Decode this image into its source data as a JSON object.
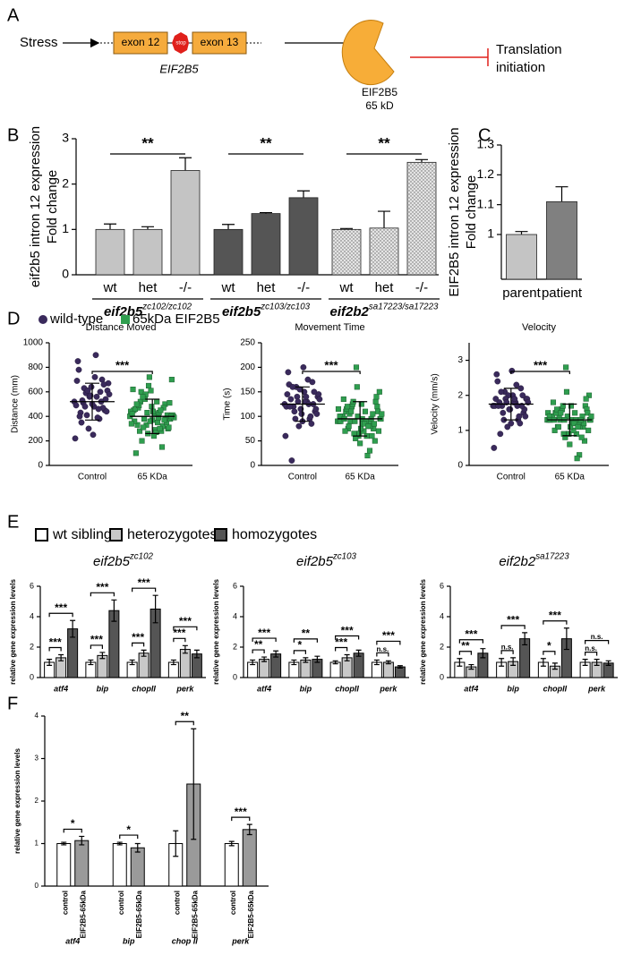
{
  "panel_labels": [
    "A",
    "B",
    "C",
    "D",
    "E",
    "F"
  ],
  "diagram": {
    "stress": "Stress",
    "exon12": "exon 12",
    "stop": "stop",
    "exon13": "exon 13",
    "gene": "EIF2B5",
    "protein": "EIF2B5",
    "protein_size": "65 kD",
    "outcome_lines": [
      "Translation",
      "initiation"
    ]
  },
  "chart_data": [
    {
      "type": "bar_groups",
      "ylabel": [
        "eif2b5 intron 12 expression",
        "Fold change"
      ],
      "ylim": [
        0,
        3
      ],
      "yticks": [
        0,
        1,
        2,
        3
      ],
      "groups": [
        {
          "name": "eif2b5",
          "sup": "zc102/zc102",
          "color": "#c4c4c4",
          "categories": [
            "wt",
            "het",
            "-/-"
          ],
          "values": [
            1.0,
            1.0,
            2.3
          ],
          "errors": [
            0.12,
            0.06,
            0.28
          ],
          "annotation": "**"
        },
        {
          "name": "eif2b5",
          "sup": "zc103/zc103",
          "color": "#555555",
          "categories": [
            "wt",
            "het",
            "-/-"
          ],
          "values": [
            1.0,
            1.35,
            1.7
          ],
          "errors": [
            0.11,
            0.02,
            0.15
          ],
          "annotation": "**"
        },
        {
          "name": "eif2b2",
          "sup": "sa17223/sa17223",
          "color": "#e4e4e4",
          "pattern": "dots",
          "categories": [
            "wt",
            "het",
            "-/-"
          ],
          "values": [
            1.0,
            1.03,
            2.48
          ],
          "errors": [
            0.02,
            0.37,
            0.06
          ],
          "annotation": "**"
        }
      ]
    },
    {
      "type": "bar",
      "ylabel": [
        "EIF2B5 intron 12 expression",
        "Fold change"
      ],
      "categories": [
        "parent",
        "patient"
      ],
      "values": [
        1.0,
        1.11
      ],
      "errors": [
        0.01,
        0.05
      ],
      "colors": [
        "#c4c4c4",
        "#808080"
      ],
      "ylim": [
        0.85,
        1.3
      ],
      "yticks": [
        1,
        1.1,
        1.2,
        1.3
      ]
    },
    {
      "type": "strip",
      "title": "Distance Moved",
      "ylabel": "Distance (mm)",
      "categories": [
        "Control",
        "65 KDa"
      ],
      "legend": "top-left",
      "series": [
        {
          "name": "wild-type",
          "color": "#3a2a5c",
          "values": [
            520,
            610,
            450,
            700,
            380,
            560,
            480,
            640,
            300,
            590,
            510,
            430,
            850,
            220,
            670,
            540,
            470,
            600,
            390,
            720,
            500,
            560,
            410,
            630,
            350,
            780,
            490,
            580,
            440,
            660,
            520,
            460,
            900,
            250,
            570,
            610,
            480,
            530,
            400,
            690
          ]
        },
        {
          "name": "65kDa EIF2B5",
          "color": "#2f9e4f",
          "values": [
            400,
            350,
            520,
            300,
            610,
            450,
            280,
            380,
            700,
            420,
            330,
            500,
            260,
            440,
            390,
            600,
            310,
            480,
            360,
            150,
            540,
            410,
            290,
            470,
            380,
            650,
            340,
            430,
            200,
            510,
            370,
            460,
            320,
            580,
            400,
            270,
            490,
            350,
            720,
            420,
            300,
            560,
            380,
            440,
            100,
            470,
            330,
            390,
            520,
            280,
            410,
            360,
            620,
            450,
            310,
            400,
            240,
            500,
            370,
            430
          ]
        }
      ],
      "means": [
        520,
        400
      ],
      "sds": [
        150,
        140
      ],
      "ylim": [
        0,
        1000
      ],
      "yticks": [
        0,
        200,
        400,
        600,
        800,
        1000
      ],
      "annotation": "***"
    },
    {
      "type": "strip",
      "title": "Movement Time",
      "ylabel": "Time (s)",
      "categories": [
        "Control",
        "65 KDa"
      ],
      "series": [
        {
          "name": "wild-type",
          "color": "#3a2a5c",
          "values": [
            125,
            140,
            110,
            170,
            95,
            130,
            150,
            105,
            80,
            160,
            120,
            135,
            190,
            60,
            145,
            115,
            125,
            100,
            175,
            130,
            90,
            155,
            140,
            110,
            10,
            165,
            120,
            135,
            105,
            150,
            85,
            125,
            140,
            200,
            115,
            130,
            95,
            160,
            120,
            145
          ]
        },
        {
          "name": "65kDa EIF2B5",
          "color": "#2f9e4f",
          "values": [
            90,
            110,
            75,
            130,
            60,
            100,
            85,
            120,
            150,
            95,
            70,
            105,
            55,
            115,
            90,
            80,
            140,
            65,
            100,
            30,
            125,
            95,
            85,
            110,
            75,
            200,
            90,
            60,
            105,
            120,
            45,
            100,
            80,
            130,
            95,
            70,
            115,
            85,
            160,
            100,
            20,
            90,
            110,
            75,
            135,
            95,
            65,
            105,
            85,
            120,
            50,
            100,
            90,
            80,
            110,
            70,
            125,
            95,
            60,
            90
          ]
        }
      ],
      "means": [
        125,
        95
      ],
      "sds": [
        35,
        35
      ],
      "ylim": [
        0,
        250
      ],
      "yticks": [
        0,
        50,
        100,
        150,
        200,
        250
      ],
      "annotation": "***"
    },
    {
      "type": "strip",
      "title": "Velocity",
      "ylabel": "Velocity (mm/s)",
      "categories": [
        "Control",
        "65 KDa"
      ],
      "series": [
        {
          "name": "wild-type",
          "color": "#3a2a5c",
          "values": [
            1.7,
            1.9,
            1.5,
            2.2,
            1.3,
            1.8,
            2.0,
            1.6,
            1.1,
            2.1,
            1.7,
            1.8,
            2.6,
            0.5,
            1.9,
            1.6,
            1.7,
            1.4,
            2.3,
            1.8,
            1.2,
            2.0,
            1.9,
            1.5,
            0.9,
            2.4,
            1.7,
            1.8,
            1.4,
            2.0,
            1.2,
            1.7,
            1.9,
            2.7,
            1.6,
            1.8,
            1.3,
            2.1,
            1.7,
            1.9
          ]
        },
        {
          "name": "65kDa EIF2B5",
          "color": "#2f9e4f",
          "values": [
            1.3,
            1.5,
            1.1,
            1.7,
            0.9,
            1.4,
            1.2,
            1.6,
            2.0,
            1.3,
            1.0,
            1.4,
            0.8,
            1.5,
            1.3,
            1.1,
            1.9,
            0.9,
            1.4,
            0.3,
            1.6,
            1.3,
            1.2,
            1.5,
            1.1,
            2.8,
            1.3,
            0.9,
            1.4,
            1.6,
            0.6,
            1.4,
            1.1,
            1.7,
            1.3,
            1.0,
            1.5,
            1.2,
            2.1,
            1.4,
            0.2,
            1.3,
            1.5,
            1.1,
            1.8,
            1.3,
            0.9,
            1.4,
            1.2,
            1.6,
            0.7,
            1.4,
            1.3,
            1.1,
            1.5,
            1.0,
            1.7,
            1.3,
            0.8,
            1.3
          ]
        }
      ],
      "means": [
        1.75,
        1.3
      ],
      "sds": [
        0.45,
        0.45
      ],
      "ylim": [
        0,
        3.5
      ],
      "yticks": [
        0,
        1,
        2,
        3
      ],
      "annotation": "***"
    },
    {
      "type": "grouped_bar",
      "title": "eif2b5",
      "title_sup": "zc102",
      "ylabel": "relative gene expression levels",
      "categories": [
        "atf4",
        "bip",
        "chopII",
        "perk"
      ],
      "legend": "top-left",
      "series": [
        {
          "name": "wt sibling",
          "color": "#ffffff",
          "values": [
            1,
            1,
            1,
            1
          ],
          "errors": [
            0.2,
            0.15,
            0.15,
            0.15
          ]
        },
        {
          "name": "heterozygotes",
          "color": "#c8c8c8",
          "values": [
            1.3,
            1.45,
            1.6,
            1.85
          ],
          "errors": [
            0.2,
            0.2,
            0.2,
            0.25
          ]
        },
        {
          "name": "homozygotes",
          "color": "#555555",
          "values": [
            3.2,
            4.4,
            4.5,
            1.55
          ],
          "errors": [
            0.55,
            0.7,
            0.9,
            0.25
          ]
        }
      ],
      "significance": [
        [
          "***",
          "***"
        ],
        [
          "***",
          "***"
        ],
        [
          "***",
          "***"
        ],
        [
          "***",
          "***"
        ]
      ],
      "ylim": [
        0,
        6
      ],
      "yticks": [
        0,
        2,
        4,
        6
      ]
    },
    {
      "type": "grouped_bar",
      "title": "eif2b5",
      "title_sup": "zc103",
      "ylabel": "relative gene expression levels",
      "categories": [
        "atf4",
        "bip",
        "chopII",
        "perk"
      ],
      "series": [
        {
          "name": "wt sibling",
          "color": "#ffffff",
          "values": [
            1,
            1,
            1,
            1
          ],
          "errors": [
            0.15,
            0.15,
            0.1,
            0.15
          ]
        },
        {
          "name": "heterozygotes",
          "color": "#c8c8c8",
          "values": [
            1.2,
            1.15,
            1.3,
            1.0
          ],
          "errors": [
            0.15,
            0.15,
            0.2,
            0.1
          ]
        },
        {
          "name": "homozygotes",
          "color": "#555555",
          "values": [
            1.55,
            1.2,
            1.6,
            0.7
          ],
          "errors": [
            0.2,
            0.2,
            0.2,
            0.08
          ]
        }
      ],
      "significance": [
        [
          "**",
          "***"
        ],
        [
          "*",
          "**"
        ],
        [
          "***",
          "***"
        ],
        [
          "n.s.",
          "***"
        ]
      ],
      "ylim": [
        0,
        6
      ],
      "yticks": [
        0,
        2,
        4,
        6
      ]
    },
    {
      "type": "grouped_bar",
      "title": "eif2b2",
      "title_sup": "sa17223",
      "ylabel": "relative gene expression levels",
      "categories": [
        "atf4",
        "bip",
        "chopII",
        "perk"
      ],
      "series": [
        {
          "name": "wt sibling",
          "color": "#ffffff",
          "values": [
            1,
            1,
            1,
            1
          ],
          "errors": [
            0.25,
            0.25,
            0.25,
            0.2
          ]
        },
        {
          "name": "heterozygotes",
          "color": "#c8c8c8",
          "values": [
            0.7,
            1.05,
            0.75,
            1.0
          ],
          "errors": [
            0.15,
            0.25,
            0.2,
            0.2
          ]
        },
        {
          "name": "homozygotes",
          "color": "#555555",
          "values": [
            1.6,
            2.55,
            2.55,
            0.95
          ],
          "errors": [
            0.3,
            0.4,
            0.7,
            0.15
          ]
        }
      ],
      "significance": [
        [
          "**",
          "***"
        ],
        [
          "n.s.",
          "***"
        ],
        [
          "*",
          "***"
        ],
        [
          "n.s.",
          "n.s."
        ]
      ],
      "ylim": [
        0,
        6
      ],
      "yticks": [
        0,
        2,
        4,
        6
      ]
    },
    {
      "type": "grouped_bar",
      "ylabel": "relative gene expression levels",
      "categories": [
        "atf4",
        "bip",
        "chop II",
        "perk"
      ],
      "series_labels": "below-bars",
      "series": [
        {
          "name": "control",
          "color": "#ffffff",
          "values": [
            1,
            1,
            1,
            1
          ],
          "errors": [
            0.03,
            0.03,
            0.3,
            0.05
          ]
        },
        {
          "name": "EIF2B5-65kDa",
          "color": "#9a9a9a",
          "values": [
            1.07,
            0.9,
            2.4,
            1.33
          ],
          "errors": [
            0.1,
            0.1,
            1.3,
            0.12
          ]
        }
      ],
      "significance": [
        "*",
        "*",
        "**",
        "***"
      ],
      "ylim": [
        0,
        4
      ],
      "yticks": [
        0,
        1,
        2,
        3,
        4
      ]
    }
  ]
}
